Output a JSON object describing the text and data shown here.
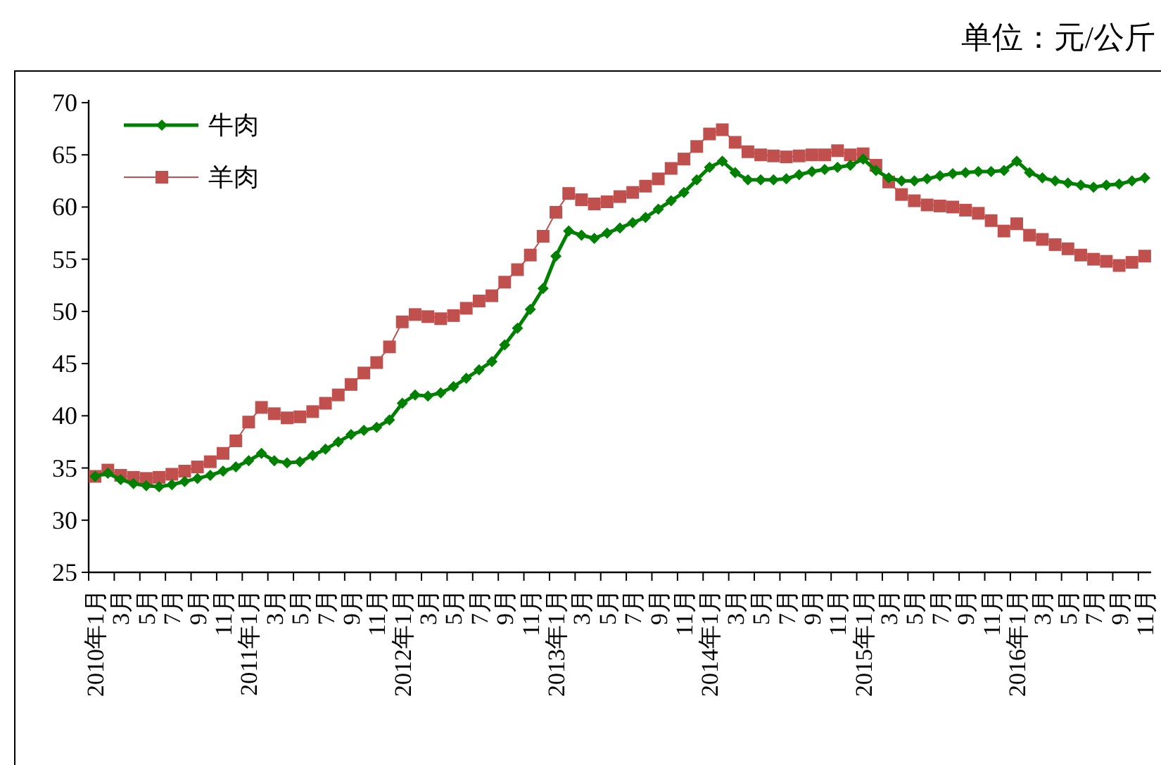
{
  "chart_data": {
    "type": "line",
    "ylabel": "单位：元/公斤",
    "categories": [
      "2010年1月",
      null,
      "3月",
      null,
      "5月",
      null,
      "7月",
      null,
      "9月",
      null,
      "11月",
      null,
      "2011年1月",
      null,
      "3月",
      null,
      "5月",
      null,
      "7月",
      null,
      "9月",
      null,
      "11月",
      null,
      "2012年1月",
      null,
      "3月",
      null,
      "5月",
      null,
      "7月",
      null,
      "9月",
      null,
      "11月",
      null,
      "2013年1月",
      null,
      "3月",
      null,
      "5月",
      null,
      "7月",
      null,
      "9月",
      null,
      "11月",
      null,
      "2014年1月",
      null,
      "3月",
      null,
      "5月",
      null,
      "7月",
      null,
      "9月",
      null,
      "11月",
      null,
      "2015年1月",
      null,
      "3月",
      null,
      "5月",
      null,
      "7月",
      null,
      "9月",
      null,
      "11月",
      null,
      "2016年1月",
      null,
      "3月",
      null,
      "5月",
      null,
      "7月",
      null,
      "9月",
      null,
      "11月"
    ],
    "series": [
      {
        "name": "牛肉",
        "color": "#008000",
        "marker": "diamond",
        "values": [
          34.2,
          34.5,
          33.9,
          33.5,
          33.3,
          33.2,
          33.4,
          33.7,
          34.0,
          34.3,
          34.7,
          35.1,
          35.7,
          36.4,
          35.7,
          35.5,
          35.6,
          36.2,
          36.8,
          37.5,
          38.2,
          38.6,
          38.9,
          39.6,
          41.2,
          42.0,
          41.9,
          42.2,
          42.8,
          43.6,
          44.4,
          45.2,
          46.8,
          48.4,
          50.2,
          52.2,
          55.3,
          57.7,
          57.3,
          57.0,
          57.5,
          58.0,
          58.5,
          59.0,
          59.8,
          60.6,
          61.4,
          62.6,
          63.8,
          64.4,
          63.3,
          62.6,
          62.6,
          62.6,
          62.7,
          63.1,
          63.4,
          63.6,
          63.8,
          64.0,
          64.6,
          63.5,
          62.8,
          62.5,
          62.5,
          62.7,
          63.0,
          63.2,
          63.3,
          63.4,
          63.4,
          63.5,
          64.4,
          63.3,
          62.8,
          62.5,
          62.3,
          62.1,
          61.9,
          62.1,
          62.2,
          62.5,
          62.8
        ]
      },
      {
        "name": "羊肉",
        "color": "#c0504d",
        "marker": "square",
        "values": [
          34.2,
          34.8,
          34.3,
          34.1,
          34.0,
          34.1,
          34.4,
          34.7,
          35.1,
          35.6,
          36.4,
          37.6,
          39.4,
          40.8,
          40.2,
          39.8,
          39.9,
          40.4,
          41.2,
          42.0,
          43.0,
          44.1,
          45.1,
          46.6,
          49.0,
          49.7,
          49.5,
          49.3,
          49.6,
          50.3,
          51.0,
          51.5,
          52.8,
          54.0,
          55.4,
          57.2,
          59.5,
          61.3,
          60.7,
          60.3,
          60.5,
          61.0,
          61.4,
          62.0,
          62.7,
          63.7,
          64.6,
          65.8,
          67.0,
          67.4,
          66.2,
          65.3,
          65.0,
          64.9,
          64.8,
          64.9,
          65.0,
          65.0,
          65.4,
          65.0,
          65.1,
          64.0,
          62.4,
          61.2,
          60.6,
          60.2,
          60.1,
          60.0,
          59.7,
          59.4,
          58.7,
          57.7,
          58.4,
          57.3,
          56.9,
          56.4,
          56.0,
          55.4,
          55.0,
          54.8,
          54.4,
          54.7,
          55.3
        ]
      }
    ],
    "ylim": [
      25,
      70
    ],
    "yticks": [
      25,
      30,
      35,
      40,
      45,
      50,
      55,
      60,
      65,
      70
    ],
    "legend": "top left",
    "grid": false
  }
}
